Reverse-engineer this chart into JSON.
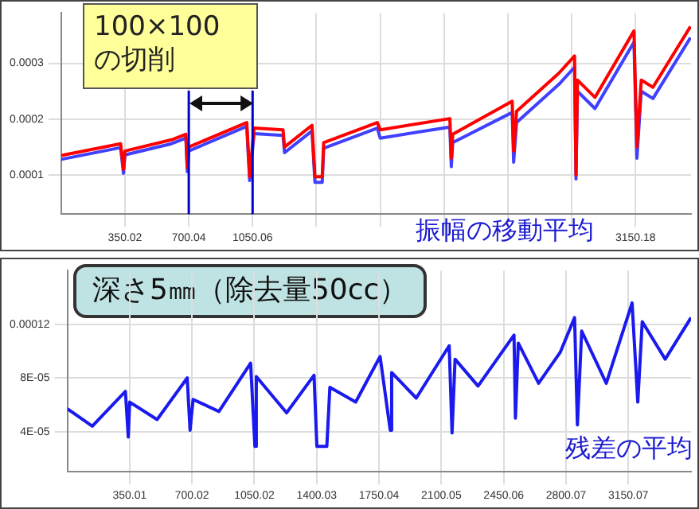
{
  "chart_data": [
    {
      "type": "line",
      "title": "振幅の移動平均",
      "annotations": [
        "100×100の切削",
        "深さ5㎜（除去量50cc）"
      ],
      "xlim": [
        0,
        3455
      ],
      "ylim": [
        3e-05,
        0.00039
      ],
      "xticks": [
        350.02,
        700.04,
        1050.06,
        {
          "value": 1400.08,
          "label": null
        },
        {
          "value": 1750.1,
          "label": null
        },
        {
          "value": 2100.12,
          "label": null
        },
        {
          "value": 2450.14,
          "label": null
        },
        {
          "value": 2800.16,
          "label": null
        },
        {
          "value": 3150.18,
          "label": "3150.18"
        }
      ],
      "yticks": [
        0.0001,
        0.0002,
        0.0003
      ],
      "grid": true,
      "legend": false,
      "marker": "none",
      "line_style": "solid",
      "ref_lines": [
        {
          "axis": "x",
          "value": 700.04,
          "color": "#0000cc"
        },
        {
          "axis": "x",
          "value": 1050.06,
          "color": "#0000cc"
        }
      ],
      "x": [
        0,
        326,
        342,
        350,
        605,
        684,
        692,
        700,
        1018,
        1034,
        1058,
        1217,
        1225,
        1376,
        1392,
        1432,
        1440,
        1734,
        1750,
        2132,
        2140,
        2148,
        2474,
        2482,
        2498,
        2729,
        2816,
        2824,
        2832,
        2928,
        3142,
        3158,
        3182,
        3246,
        3452
      ],
      "series": [
        {
          "color": "#4040ff",
          "values": [
            0.000128,
            0.000149,
            0.000103,
            0.000136,
            0.000156,
            0.000166,
            0.000106,
            0.000143,
            0.000187,
            9e-05,
            0.000174,
            0.000171,
            0.00014,
            0.000179,
            8.7e-05,
            8.7e-05,
            0.000148,
            0.000184,
            0.000166,
            0.000186,
            0.000115,
            0.000158,
            0.000212,
            0.000123,
            0.000194,
            0.000262,
            0.000293,
            9.3e-05,
            0.00025,
            0.000219,
            0.000338,
            0.00013,
            0.00025,
            0.000237,
            0.000346
          ]
        },
        {
          "color": "#ff0000",
          "values": [
            0.000135,
            0.000156,
            0.00011,
            0.000143,
            0.000163,
            0.000173,
            0.000113,
            0.00015,
            0.000194,
            9.7e-05,
            0.000184,
            0.000181,
            0.00015,
            0.000189,
            9.7e-05,
            9.7e-05,
            0.000158,
            0.000194,
            0.000181,
            0.000201,
            0.00013,
            0.000173,
            0.000232,
            0.000143,
            0.000214,
            0.000282,
            0.000313,
            0.0001,
            0.00027,
            0.000239,
            0.000358,
            0.00015,
            0.00027,
            0.000257,
            0.000366
          ]
        }
      ]
    },
    {
      "type": "line",
      "title": "残差の平均",
      "xlim": [
        0,
        3502
      ],
      "ylim": [
        1e-05,
        0.00016
      ],
      "xticks": [
        350.01,
        700.02,
        1050.02,
        1400.03,
        1750.04,
        2100.05,
        2450.06,
        2800.07,
        3150.07
      ],
      "yticks": [
        {
          "value": 4e-05,
          "label": "4E-05"
        },
        {
          "value": 8e-05,
          "label": "8E-05"
        },
        0.00012
      ],
      "grid": true,
      "legend": false,
      "marker": "none",
      "line_style": "solid",
      "x": [
        0,
        140,
        326,
        342,
        350,
        504,
        673,
        689,
        706,
        851,
        1029,
        1053,
        1061,
        1231,
        1385,
        1401,
        1457,
        1474,
        1619,
        1756,
        1813,
        1821,
        1959,
        2144,
        2160,
        2177,
        2306,
        2508,
        2516,
        2532,
        2646,
        2767,
        2848,
        2864,
        2888,
        3026,
        3171,
        3203,
        3228,
        3357,
        3502
      ],
      "series": [
        {
          "color": "#1a1aee",
          "values": [
            5.7e-05,
            4.4e-05,
            7e-05,
            3.6e-05,
            6.2e-05,
            4.9e-05,
            8e-05,
            4.1e-05,
            6.4e-05,
            5.5e-05,
            9.1e-05,
            2.9e-05,
            8.1e-05,
            5.4e-05,
            8.2e-05,
            2.9e-05,
            2.9e-05,
            7.3e-05,
            6.2e-05,
            9.6e-05,
            4.1e-05,
            8.4e-05,
            6.5e-05,
            0.000104,
            3.9e-05,
            9.4e-05,
            7.4e-05,
            0.000112,
            5e-05,
            0.000106,
            7.6e-05,
            9.9e-05,
            0.000125,
            4.5e-05,
            0.000115,
            7.6e-05,
            0.000136,
            6.2e-05,
            0.000122,
            9.4e-05,
            0.000125
          ]
        }
      ]
    }
  ]
}
